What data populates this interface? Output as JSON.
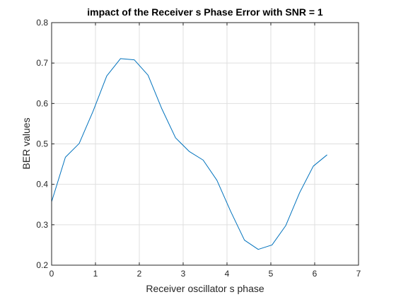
{
  "chart_data": {
    "type": "line",
    "title": "impact of the Receiver s Phase Error with SNR = 1",
    "xlabel": "Receiver oscillator s phase",
    "ylabel": "BER values",
    "xlim": [
      0,
      7
    ],
    "ylim": [
      0.2,
      0.8
    ],
    "xticks": [
      0,
      1,
      2,
      3,
      4,
      5,
      6,
      7
    ],
    "yticks": [
      0.2,
      0.3,
      0.4,
      0.5,
      0.6,
      0.7,
      0.8
    ],
    "xtick_labels": [
      "0",
      "1",
      "2",
      "3",
      "4",
      "5",
      "6",
      "7"
    ],
    "ytick_labels": [
      "0.2",
      "0.3",
      "0.4",
      "0.5",
      "0.6",
      "0.7",
      "0.8"
    ],
    "grid": true,
    "legend": "none",
    "series": [
      {
        "color": "#0072BD",
        "x": [
          0,
          0.314,
          0.628,
          0.942,
          1.257,
          1.571,
          1.885,
          2.199,
          2.513,
          2.827,
          3.142,
          3.456,
          3.77,
          4.084,
          4.398,
          4.712,
          5.027,
          5.341,
          5.655,
          5.969,
          6.283
        ],
        "y": [
          0.357,
          0.467,
          0.501,
          0.58,
          0.668,
          0.711,
          0.708,
          0.67,
          0.587,
          0.515,
          0.481,
          0.46,
          0.41,
          0.333,
          0.262,
          0.239,
          0.25,
          0.298,
          0.379,
          0.445,
          0.473
        ]
      }
    ]
  }
}
